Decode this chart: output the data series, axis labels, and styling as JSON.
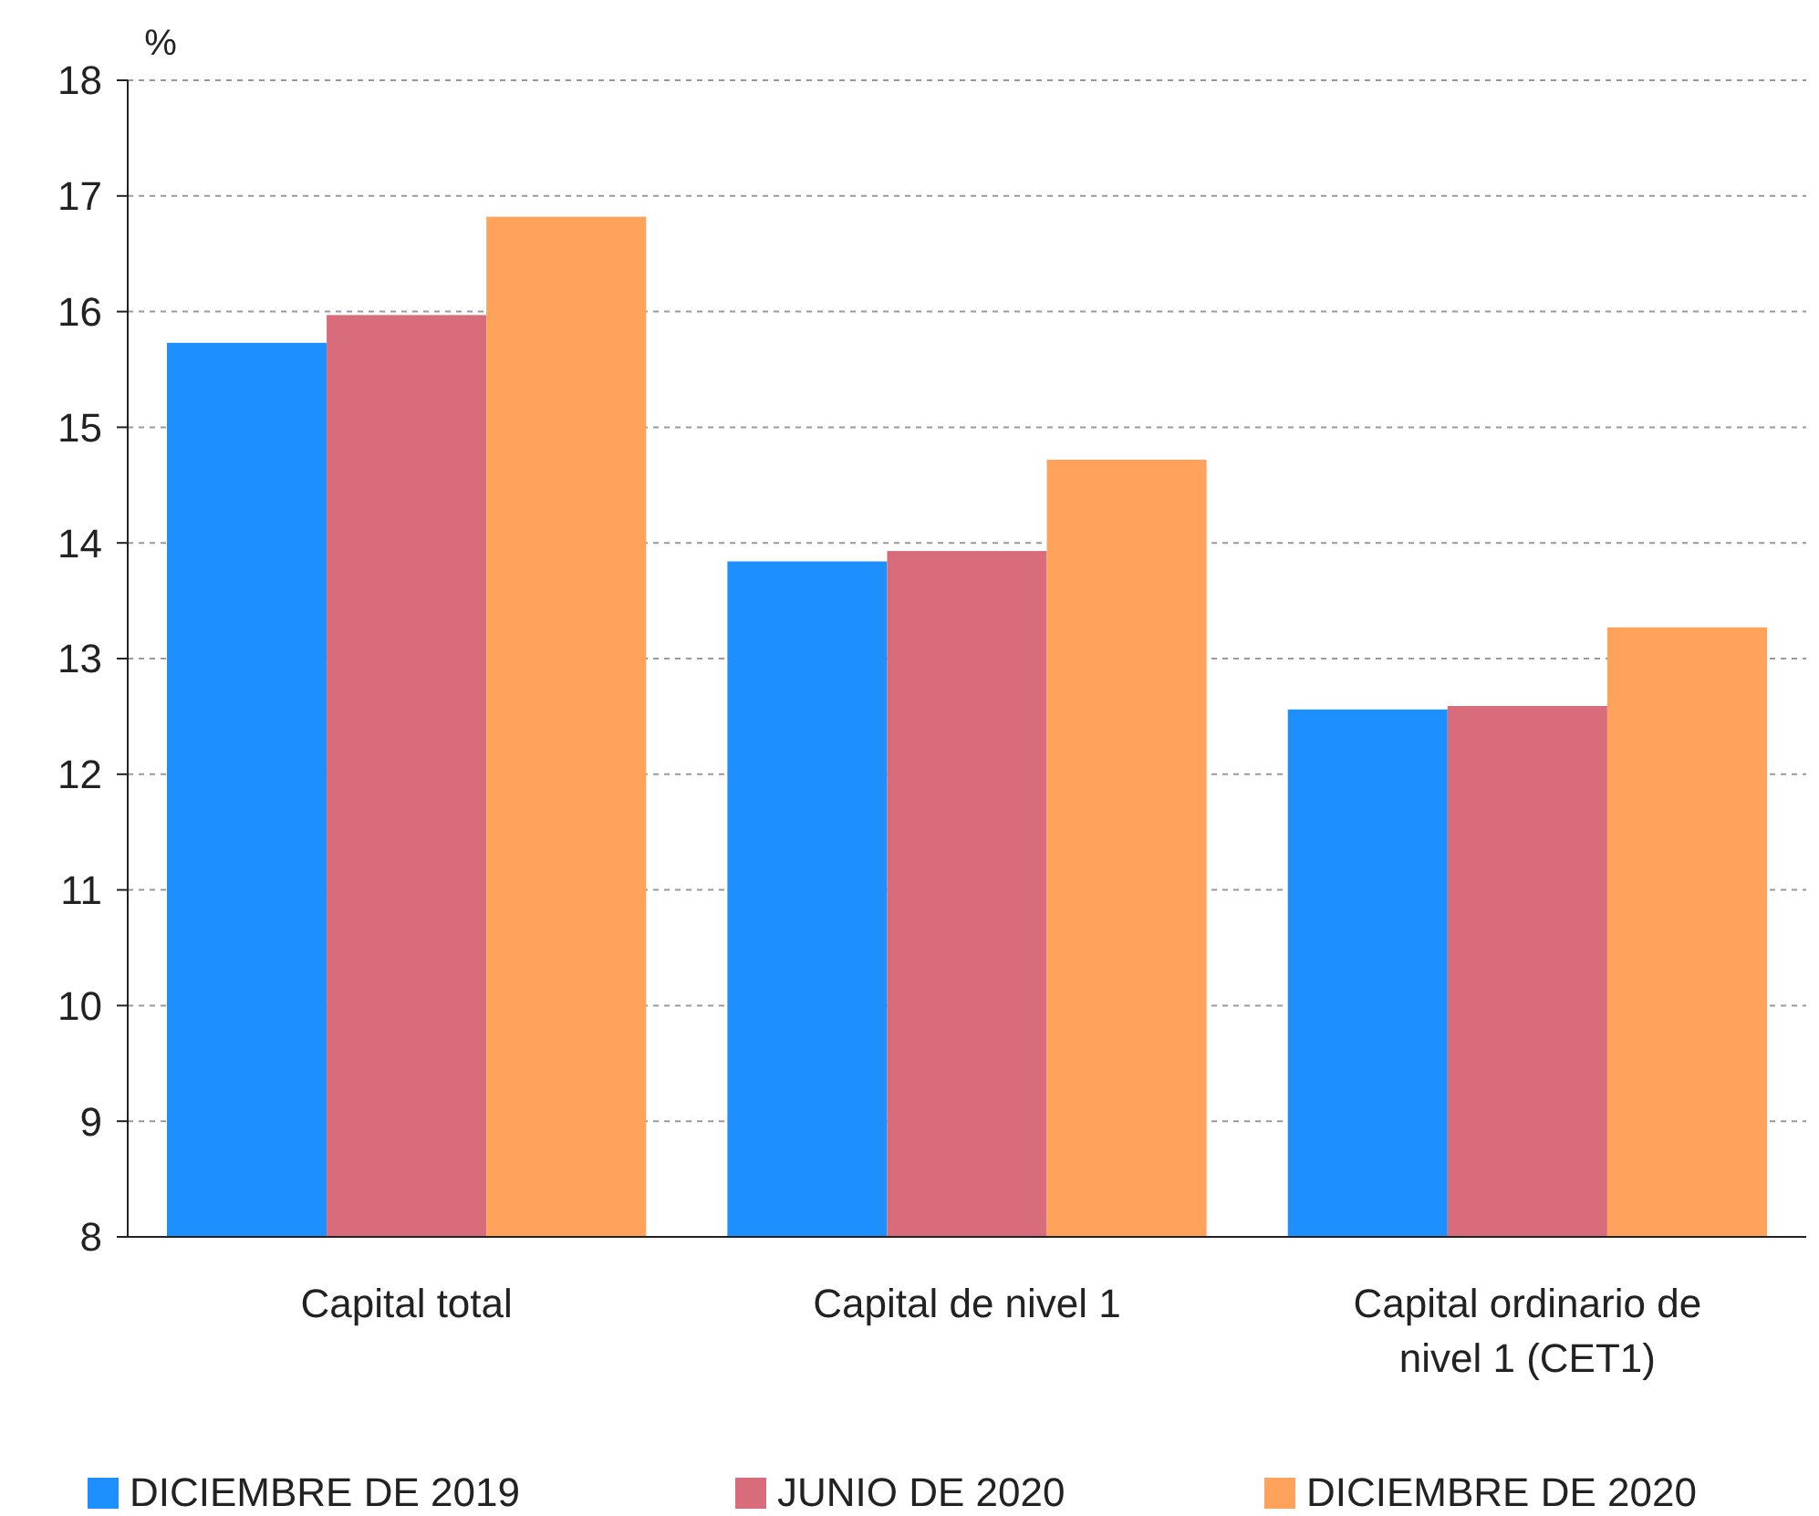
{
  "chart_data": {
    "type": "bar",
    "ylabel": "%",
    "categories": [
      "Capital total",
      "Capital de nivel 1",
      "Capital ordinario de nivel 1 (CET1)"
    ],
    "series": [
      {
        "name": "DICIEMBRE DE 2019",
        "color": "#1e8fff",
        "values": [
          15.73,
          13.84,
          12.56
        ]
      },
      {
        "name": "JUNIO DE 2020",
        "color": "#d96c7a",
        "values": [
          15.97,
          13.93,
          12.59
        ]
      },
      {
        "name": "DICIEMBRE DE 2020",
        "color": "#ffa35c",
        "values": [
          16.82,
          14.72,
          13.27
        ]
      }
    ],
    "ylim": [
      8,
      18
    ],
    "yticks": [
      8,
      9,
      10,
      11,
      12,
      13,
      14,
      15,
      16,
      17,
      18
    ],
    "grid": "y",
    "legend": "bottom"
  }
}
